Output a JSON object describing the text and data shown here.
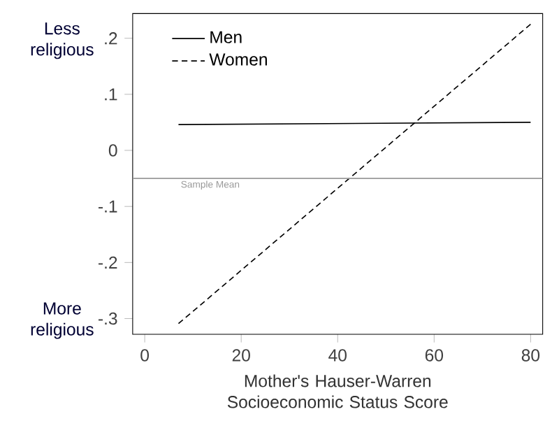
{
  "chart_data": {
    "type": "line",
    "xlabel": "Mother's Hauser-Warren Socioeconomic Status  Score",
    "annotations": [
      "Less religious",
      "More religious"
    ],
    "series": [
      {
        "name": "Men",
        "color": "#000000",
        "line_style": "solid",
        "values": [
          0.046,
          0.05
        ]
      },
      {
        "name": "Women",
        "color": "#000000",
        "line_style": "dashed",
        "values": [
          -0.309,
          0.225
        ]
      }
    ],
    "x": [
      7,
      80
    ],
    "xlim": [
      -2.5,
      82.5
    ],
    "ylim": [
      -0.328,
      0.244
    ],
    "xticks": [
      0,
      20,
      40,
      60,
      80
    ],
    "yticks": [
      {
        "value": -0.3,
        "label": "-.3"
      },
      {
        "value": -0.2,
        "label": "-.2"
      },
      {
        "value": -0.1,
        "label": "-.1"
      },
      0,
      {
        "value": 0.1,
        "label": ".1"
      },
      {
        "value": 0.2,
        "label": ".2"
      }
    ],
    "ref_lines": [
      {
        "axis": "y",
        "value": -0.05,
        "label": "Sample Mean",
        "color": "#999999"
      }
    ],
    "legend": "top left",
    "grid": false
  }
}
